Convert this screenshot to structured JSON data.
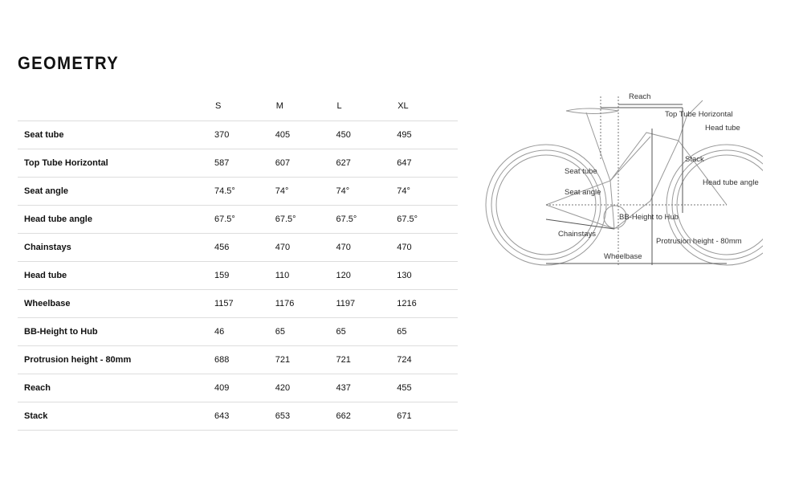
{
  "title": "GEOMETRY",
  "sizes": [
    "S",
    "M",
    "L",
    "XL"
  ],
  "rows": [
    {
      "label": "Seat tube",
      "values": [
        "370",
        "405",
        "450",
        "495"
      ]
    },
    {
      "label": "Top Tube Horizontal",
      "values": [
        "587",
        "607",
        "627",
        "647"
      ]
    },
    {
      "label": "Seat angle",
      "values": [
        "74.5°",
        "74°",
        "74°",
        "74°"
      ]
    },
    {
      "label": "Head tube angle",
      "values": [
        "67.5°",
        "67.5°",
        "67.5°",
        "67.5°"
      ]
    },
    {
      "label": "Chainstays",
      "values": [
        "456",
        "470",
        "470",
        "470"
      ]
    },
    {
      "label": "Head tube",
      "values": [
        "159",
        "110",
        "120",
        "130"
      ]
    },
    {
      "label": "Wheelbase",
      "values": [
        "1157",
        "1176",
        "1197",
        "1216"
      ]
    },
    {
      "label": "BB-Height to Hub",
      "values": [
        "46",
        "65",
        "65",
        "65"
      ]
    },
    {
      "label": "Protrusion height - 80mm",
      "values": [
        "688",
        "721",
        "721",
        "724"
      ]
    },
    {
      "label": "Reach",
      "values": [
        "409",
        "420",
        "437",
        "455"
      ]
    },
    {
      "label": "Stack",
      "values": [
        "643",
        "653",
        "662",
        "671"
      ]
    }
  ],
  "diagram": {
    "reach": "Reach",
    "top_tube": "Top Tube Horizontal",
    "head_tube": "Head tube",
    "stack": "Stack",
    "seat_tube": "Seat tube",
    "seat_angle": "Seat angle",
    "head_tube_angle": "Head tube angle",
    "bb_height": "BB-Height to Hub",
    "chainstays": "Chainstays",
    "protrusion": "Protrusion height - 80mm",
    "wheelbase": "Wheelbase"
  }
}
